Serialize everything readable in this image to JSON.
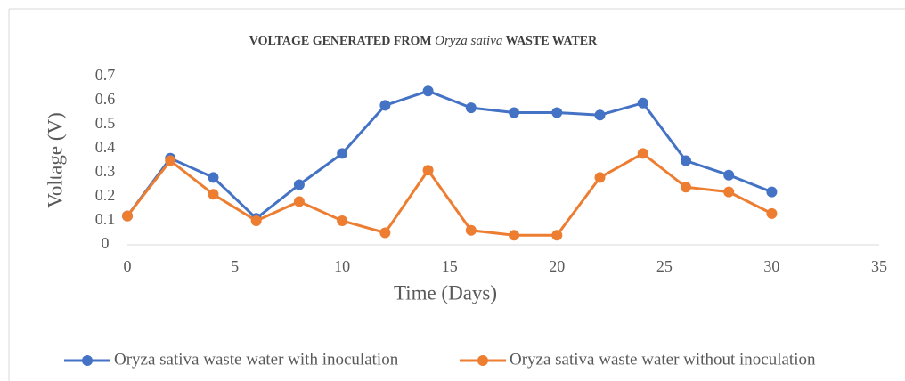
{
  "chart_data": {
    "type": "line",
    "title_parts": [
      "VOLTAGE  GENERATED FROM ",
      "Oryza sativa",
      " WASTE  WATER"
    ],
    "xlabel": "Time (Days)",
    "ylabel": "Voltage  (V)",
    "x": [
      0,
      2,
      4,
      6,
      8,
      10,
      12,
      14,
      16,
      18,
      20,
      22,
      24,
      26,
      28,
      30
    ],
    "series": [
      {
        "name": "Oryza sativa waste water with inoculation",
        "color": "#4472c4",
        "values": [
          0.12,
          0.36,
          0.28,
          0.11,
          0.25,
          0.38,
          0.58,
          0.64,
          0.57,
          0.55,
          0.55,
          0.54,
          0.59,
          0.35,
          0.29,
          0.22
        ]
      },
      {
        "name": "Oryza sativa waste water without inoculation",
        "color": "#ed7d31",
        "values": [
          0.12,
          0.35,
          0.21,
          0.1,
          0.18,
          0.1,
          0.05,
          0.31,
          0.06,
          0.04,
          0.04,
          0.28,
          0.38,
          0.24,
          0.22,
          0.13
        ]
      }
    ],
    "xlim": [
      0,
      35
    ],
    "xticks": [
      0,
      5,
      10,
      15,
      20,
      25,
      30,
      35
    ],
    "ylim": [
      0,
      0.7
    ],
    "yticks": [
      0,
      0.1,
      0.2,
      0.3,
      0.4,
      0.5,
      0.6,
      0.7
    ],
    "grid": false,
    "legend": "bottom"
  }
}
